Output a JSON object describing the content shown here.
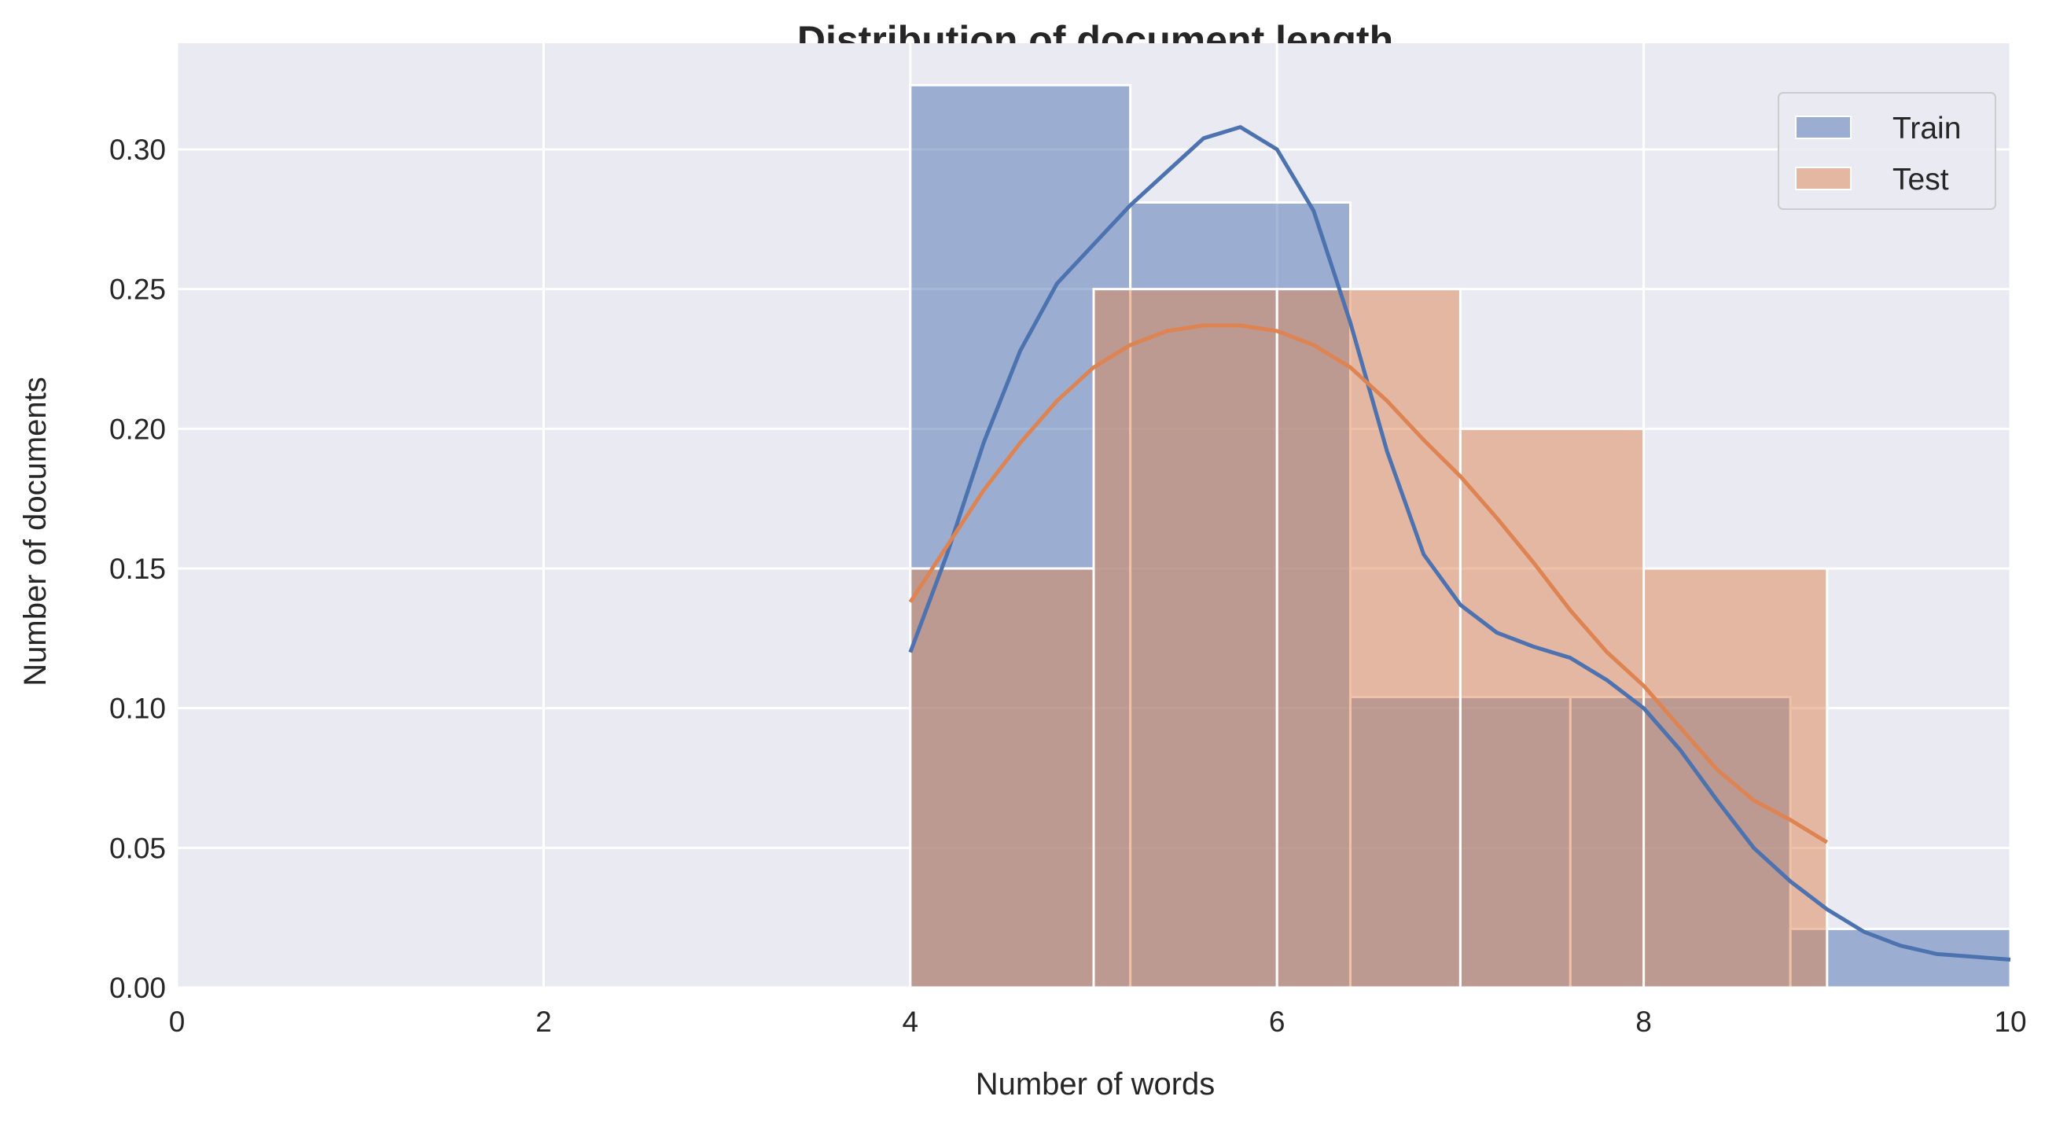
{
  "chart_data": {
    "type": "histogram",
    "title": "Distribution of document length",
    "xlabel": "Number of words",
    "ylabel": "Number of documents",
    "xlim": [
      0,
      10
    ],
    "ylim": [
      0,
      0.338
    ],
    "xticks": [
      0,
      2,
      4,
      6,
      8,
      10
    ],
    "yticks": [
      0.0,
      0.05,
      0.1,
      0.15,
      0.2,
      0.25,
      0.3
    ],
    "ytick_labels": [
      "0.00",
      "0.05",
      "0.10",
      "0.15",
      "0.20",
      "0.25",
      "0.30"
    ],
    "grid": true,
    "legend_position": "top-right",
    "colors": {
      "background": "#eaeaf2",
      "grid": "#ffffff",
      "train": "#4c72b0",
      "test": "#dd8452"
    },
    "series": [
      {
        "name": "Train",
        "bins": [
          {
            "x0": 4.0,
            "x1": 5.2,
            "value": 0.323
          },
          {
            "x0": 5.2,
            "x1": 6.4,
            "value": 0.281
          },
          {
            "x0": 6.4,
            "x1": 7.6,
            "value": 0.104
          },
          {
            "x0": 7.6,
            "x1": 8.8,
            "value": 0.104
          },
          {
            "x0": 8.8,
            "x1": 10.0,
            "value": 0.021
          }
        ],
        "kde": [
          [
            4.0,
            0.12
          ],
          [
            4.2,
            0.155
          ],
          [
            4.4,
            0.195
          ],
          [
            4.6,
            0.228
          ],
          [
            4.8,
            0.252
          ],
          [
            5.0,
            0.266
          ],
          [
            5.2,
            0.28
          ],
          [
            5.4,
            0.292
          ],
          [
            5.6,
            0.304
          ],
          [
            5.8,
            0.308
          ],
          [
            6.0,
            0.3
          ],
          [
            6.2,
            0.278
          ],
          [
            6.4,
            0.238
          ],
          [
            6.6,
            0.192
          ],
          [
            6.8,
            0.155
          ],
          [
            7.0,
            0.137
          ],
          [
            7.2,
            0.127
          ],
          [
            7.4,
            0.122
          ],
          [
            7.6,
            0.118
          ],
          [
            7.8,
            0.11
          ],
          [
            8.0,
            0.1
          ],
          [
            8.2,
            0.085
          ],
          [
            8.4,
            0.067
          ],
          [
            8.6,
            0.05
          ],
          [
            8.8,
            0.038
          ],
          [
            9.0,
            0.028
          ],
          [
            9.2,
            0.02
          ],
          [
            9.4,
            0.015
          ],
          [
            9.6,
            0.012
          ],
          [
            9.8,
            0.011
          ],
          [
            10.0,
            0.01
          ]
        ]
      },
      {
        "name": "Test",
        "bins": [
          {
            "x0": 4.0,
            "x1": 5.0,
            "value": 0.15
          },
          {
            "x0": 5.0,
            "x1": 6.0,
            "value": 0.25
          },
          {
            "x0": 6.0,
            "x1": 7.0,
            "value": 0.25
          },
          {
            "x0": 7.0,
            "x1": 8.0,
            "value": 0.2
          },
          {
            "x0": 8.0,
            "x1": 9.0,
            "value": 0.15
          }
        ],
        "kde": [
          [
            4.0,
            0.138
          ],
          [
            4.2,
            0.158
          ],
          [
            4.4,
            0.178
          ],
          [
            4.6,
            0.195
          ],
          [
            4.8,
            0.21
          ],
          [
            5.0,
            0.222
          ],
          [
            5.2,
            0.23
          ],
          [
            5.4,
            0.235
          ],
          [
            5.6,
            0.237
          ],
          [
            5.8,
            0.237
          ],
          [
            6.0,
            0.235
          ],
          [
            6.2,
            0.23
          ],
          [
            6.4,
            0.222
          ],
          [
            6.6,
            0.21
          ],
          [
            6.8,
            0.196
          ],
          [
            7.0,
            0.183
          ],
          [
            7.2,
            0.168
          ],
          [
            7.4,
            0.152
          ],
          [
            7.6,
            0.135
          ],
          [
            7.8,
            0.12
          ],
          [
            8.0,
            0.108
          ],
          [
            8.2,
            0.093
          ],
          [
            8.4,
            0.078
          ],
          [
            8.6,
            0.067
          ],
          [
            8.8,
            0.06
          ],
          [
            9.0,
            0.052
          ]
        ]
      }
    ]
  }
}
